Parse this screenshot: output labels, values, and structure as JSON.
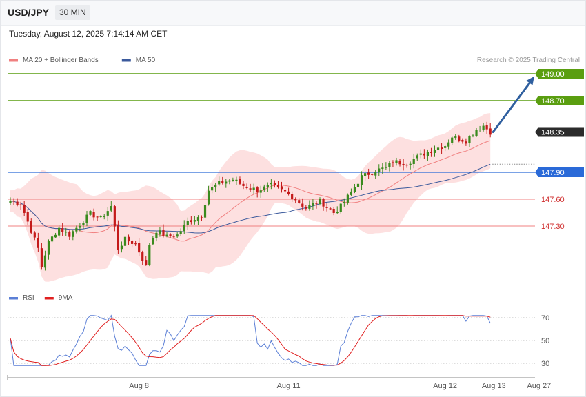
{
  "header": {
    "symbol": "USD/JPY",
    "timeframe": "30 MIN",
    "datetime": "Tuesday, August 12, 2025 7:14:14 AM CET"
  },
  "credit": "Research © 2025 Trading Central",
  "colors": {
    "resistance": "#5a9e10",
    "support": "#f08080",
    "pivot": "#2a6ad8",
    "price_tag": "#2b2b2b",
    "arrow": "#2f5f9f",
    "bb_fill": "#fde0e0",
    "ma20": "#f08080",
    "ma50": "#3b5a9c",
    "rsi": "#5b7fd6",
    "rsi_ma": "#e02020",
    "candle_up": "#3a8a1e",
    "candle_down": "#c41a1a"
  },
  "chart_data": [
    {
      "type": "candlestick",
      "legend": [
        {
          "label": "MA 20 + Bollinger Bands",
          "color": "#f08080"
        },
        {
          "label": "MA 50",
          "color": "#3b5a9c"
        }
      ],
      "levels": [
        {
          "label": "149.00",
          "value": 149.0,
          "kind": "resistance"
        },
        {
          "label": "148.70",
          "value": 148.7,
          "kind": "resistance"
        },
        {
          "label": "148.35",
          "value": 148.35,
          "kind": "last_price"
        },
        {
          "label": "147.90",
          "value": 147.9,
          "kind": "pivot"
        },
        {
          "label": "147.60",
          "value": 147.6,
          "kind": "support"
        },
        {
          "label": "147.30",
          "value": 147.3,
          "kind": "support"
        }
      ],
      "ylim": [
        146.45,
        149.18
      ],
      "x_ticks": [
        {
          "label": "Aug 8",
          "index": 37
        },
        {
          "label": "Aug 11",
          "index": 80
        },
        {
          "label": "Aug 12",
          "index": 125
        },
        {
          "label": "Aug 13",
          "index": 139
        },
        {
          "label": "Aug 27",
          "index": 152
        }
      ],
      "projection": {
        "from": {
          "index": 138,
          "value": 148.35
        },
        "to": {
          "index": 152,
          "value": 148.97
        }
      }
    },
    {
      "type": "line",
      "legend": [
        {
          "label": "RSI",
          "color": "#5b7fd6"
        },
        {
          "label": "9MA",
          "color": "#e02020"
        }
      ],
      "ylim": [
        20,
        80
      ],
      "y_ticks": [
        {
          "label": "70",
          "value": 70
        },
        {
          "label": "50",
          "value": 50
        },
        {
          "label": "30",
          "value": 30
        }
      ]
    }
  ]
}
